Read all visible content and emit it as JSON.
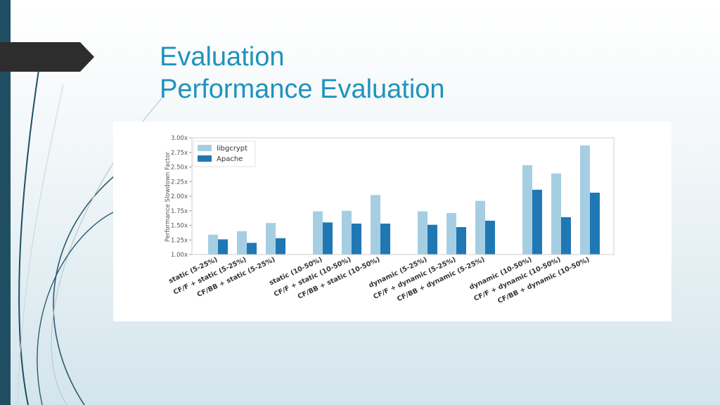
{
  "slide": {
    "title_line1": "Evaluation",
    "title_line2": "Performance Evaluation"
  },
  "colors": {
    "accent": "#1f93bd",
    "left_bar": "#1f4e63",
    "libgcrypt": "#a6cee3",
    "apache": "#1f78b4"
  },
  "chart_data": {
    "type": "bar",
    "title": "",
    "xlabel": "",
    "ylabel": "Performance Slowdown Factor",
    "ylim": [
      1.0,
      3.0
    ],
    "yticks": [
      1.0,
      1.25,
      1.5,
      1.75,
      2.0,
      2.25,
      2.5,
      2.75,
      3.0
    ],
    "ytick_labels": [
      "1.00x",
      "1.25x",
      "1.50x",
      "1.75x",
      "2.00x",
      "2.25x",
      "2.50x",
      "2.75x",
      "3.00x"
    ],
    "legend_position": "top-left",
    "categories": [
      "static (5-25%)",
      "CF/F + static (5-25%)",
      "CF/BB + static (5-25%)",
      "static (10-50%)",
      "CF/F + static (10-50%)",
      "CF/BB + static (10-50%)",
      "dynamic (5-25%)",
      "CF/F + dynamic (5-25%)",
      "CF/BB + dynamic (5-25%)",
      "dynamic (10-50%)",
      "CF/F + dynamic (10-50%)",
      "CF/BB + dynamic (10-50%)"
    ],
    "series": [
      {
        "name": "libgcrypt",
        "values": [
          1.34,
          1.4,
          1.54,
          1.74,
          1.75,
          2.02,
          1.74,
          1.71,
          1.92,
          2.53,
          2.39,
          2.87
        ]
      },
      {
        "name": "Apache",
        "values": [
          1.26,
          1.2,
          1.28,
          1.55,
          1.53,
          1.53,
          1.51,
          1.47,
          1.58,
          2.11,
          1.64,
          2.06
        ]
      }
    ]
  }
}
